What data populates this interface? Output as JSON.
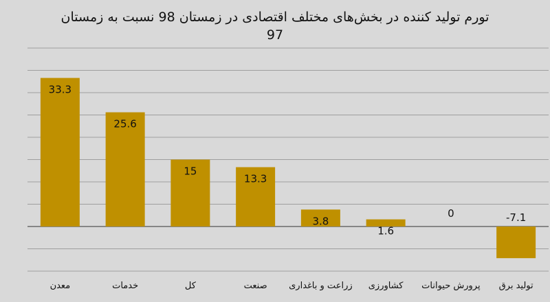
{
  "chart_data": {
    "type": "bar",
    "title": "تورم تولید کننده در بخش‌های مختلف اقتصادی در زمستان 98 نسبت به زمستان 97",
    "categories": [
      "معدن",
      "خدمات",
      "کل",
      "صنعت",
      "زراعت و باغداری",
      "کشاورزی",
      "پرورش حیوانات",
      "تولید برق"
    ],
    "values": [
      33.3,
      25.6,
      15,
      13.3,
      3.8,
      1.6,
      0,
      -7.1
    ],
    "ylim": [
      -10,
      40
    ],
    "grid": true,
    "colors": {
      "bar": "#bf9000",
      "background": "#d9d9d9",
      "grid": "#9e9e9e"
    }
  }
}
